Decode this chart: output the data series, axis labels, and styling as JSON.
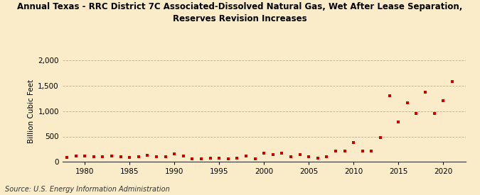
{
  "title_line1": "Annual Texas - RRC District 7C Associated-Dissolved Natural Gas, Wet After Lease Separation,",
  "title_line2": "Reserves Revision Increases",
  "ylabel": "Billion Cubic Feet",
  "source": "Source: U.S. Energy Information Administration",
  "background_color": "#faecc8",
  "dot_color": "#cc0000",
  "years": [
    1978,
    1979,
    1980,
    1981,
    1982,
    1983,
    1984,
    1985,
    1986,
    1987,
    1988,
    1989,
    1990,
    1991,
    1992,
    1993,
    1994,
    1995,
    1996,
    1997,
    1998,
    1999,
    2000,
    2001,
    2002,
    2003,
    2004,
    2005,
    2006,
    2007,
    2008,
    2009,
    2010,
    2011,
    2012,
    2013,
    2014,
    2015,
    2016,
    2017,
    2018,
    2019,
    2020,
    2021
  ],
  "values": [
    85,
    120,
    115,
    95,
    95,
    115,
    100,
    90,
    100,
    125,
    100,
    100,
    155,
    115,
    60,
    55,
    70,
    75,
    55,
    80,
    120,
    60,
    175,
    150,
    165,
    105,
    150,
    100,
    75,
    100,
    220,
    215,
    375,
    210,
    220,
    475,
    1300,
    780,
    1170,
    955,
    1380,
    960,
    1210,
    1590
  ],
  "ylim": [
    0,
    2000
  ],
  "yticks": [
    0,
    500,
    1000,
    1500,
    2000
  ],
  "ytick_labels": [
    "0",
    "500",
    "1,000",
    "1,500",
    "2,000"
  ],
  "xlim": [
    1977.5,
    2022.5
  ],
  "xticks": [
    1980,
    1985,
    1990,
    1995,
    2000,
    2005,
    2010,
    2015,
    2020
  ],
  "grid_color": "#b0b0b0",
  "spine_color": "#333333"
}
